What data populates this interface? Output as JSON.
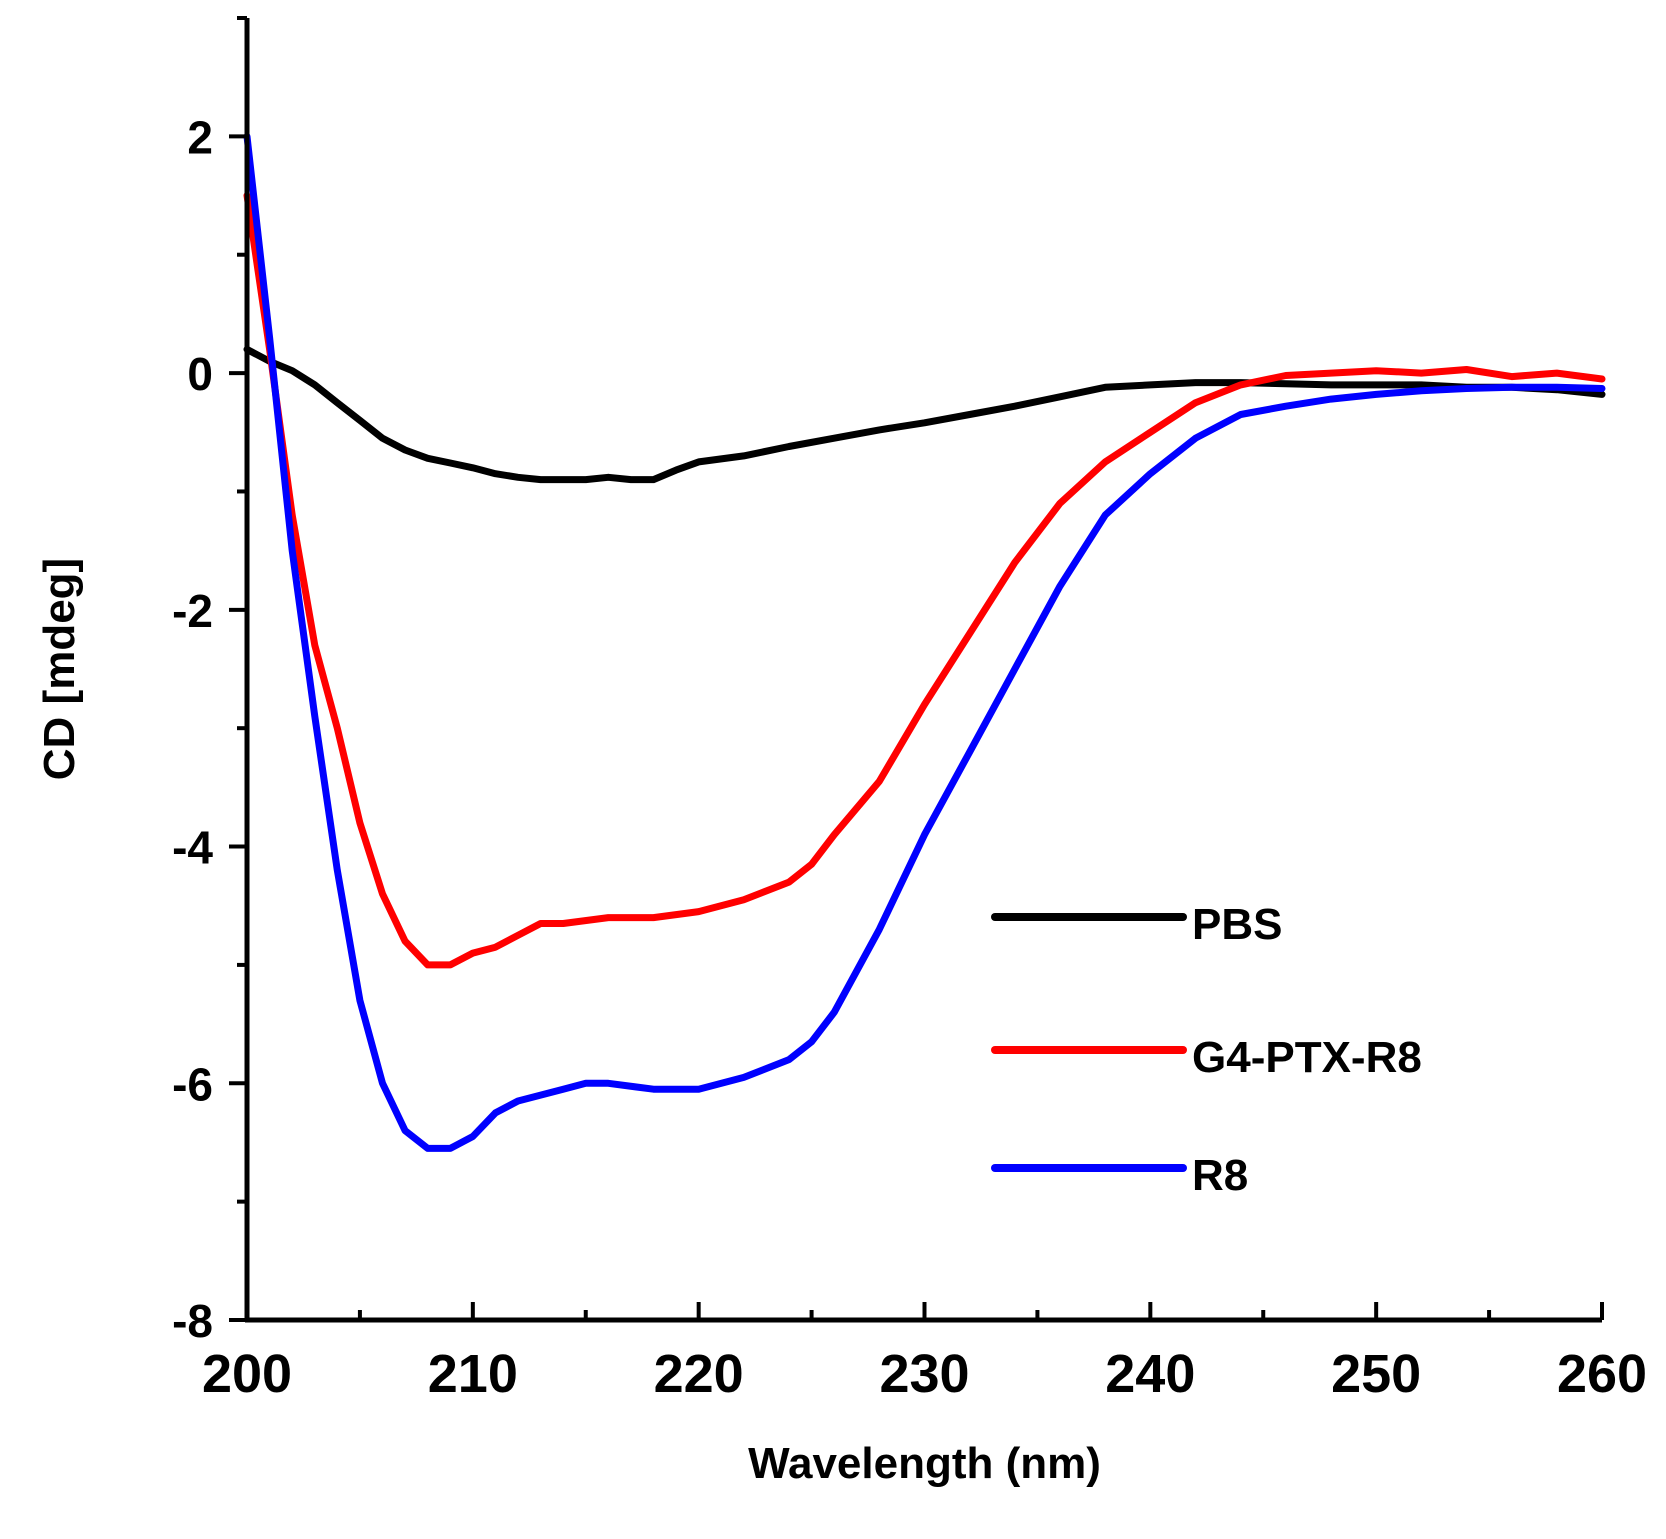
{
  "chart_data": {
    "type": "line",
    "title": "",
    "xlabel": "Wavelength (nm)",
    "ylabel": "CD [mdeg]",
    "xlim": [
      200,
      260
    ],
    "ylim": [
      -8,
      3
    ],
    "xticks": [
      200,
      210,
      220,
      230,
      240,
      250,
      260
    ],
    "yticks": [
      -8,
      -6,
      -4,
      -2,
      0,
      2
    ],
    "xtick_labels": [
      "200",
      "210",
      "220",
      "230",
      "240",
      "250",
      "260"
    ],
    "ytick_labels": [
      "-8",
      "-6",
      "-4",
      "-2",
      "0",
      "2"
    ],
    "grid": false,
    "legend_position": "lower-right",
    "series": [
      {
        "name": "PBS",
        "color": "#000000",
        "x": [
          200,
          201,
          202,
          203,
          204,
          205,
          206,
          207,
          208,
          209,
          210,
          211,
          212,
          213,
          214,
          215,
          216,
          217,
          218,
          219,
          220,
          222,
          224,
          226,
          228,
          230,
          232,
          234,
          236,
          238,
          240,
          242,
          244,
          246,
          248,
          250,
          252,
          254,
          256,
          258,
          260
        ],
        "y": [
          0.2,
          0.1,
          0.02,
          -0.1,
          -0.25,
          -0.4,
          -0.55,
          -0.65,
          -0.72,
          -0.76,
          -0.8,
          -0.85,
          -0.88,
          -0.9,
          -0.9,
          -0.9,
          -0.88,
          -0.9,
          -0.9,
          -0.82,
          -0.75,
          -0.7,
          -0.62,
          -0.55,
          -0.48,
          -0.42,
          -0.35,
          -0.28,
          -0.2,
          -0.12,
          -0.1,
          -0.08,
          -0.08,
          -0.09,
          -0.1,
          -0.1,
          -0.1,
          -0.12,
          -0.12,
          -0.14,
          -0.18
        ]
      },
      {
        "name": "G4-PTX-R8",
        "color": "#ff0000",
        "x": [
          200,
          201,
          202,
          203,
          204,
          205,
          206,
          207,
          208,
          209,
          210,
          211,
          212,
          213,
          214,
          216,
          218,
          220,
          222,
          224,
          225,
          226,
          228,
          230,
          232,
          234,
          236,
          238,
          240,
          242,
          244,
          246,
          248,
          250,
          252,
          254,
          256,
          258,
          260
        ],
        "y": [
          1.5,
          0.2,
          -1.2,
          -2.3,
          -3.0,
          -3.8,
          -4.4,
          -4.8,
          -5.0,
          -5.0,
          -4.9,
          -4.85,
          -4.75,
          -4.65,
          -4.65,
          -4.6,
          -4.6,
          -4.55,
          -4.45,
          -4.3,
          -4.15,
          -3.9,
          -3.45,
          -2.8,
          -2.2,
          -1.6,
          -1.1,
          -0.75,
          -0.5,
          -0.25,
          -0.1,
          -0.02,
          0.0,
          0.02,
          0.0,
          0.03,
          -0.03,
          0.0,
          -0.05
        ]
      },
      {
        "name": "R8",
        "color": "#0000ff",
        "x": [
          200,
          201,
          202,
          203,
          204,
          205,
          206,
          207,
          208,
          209,
          210,
          211,
          212,
          213,
          214,
          215,
          216,
          218,
          220,
          222,
          224,
          225,
          226,
          228,
          230,
          232,
          234,
          236,
          238,
          240,
          242,
          244,
          246,
          248,
          250,
          252,
          254,
          256,
          258,
          260
        ],
        "y": [
          2.0,
          0.3,
          -1.5,
          -2.9,
          -4.2,
          -5.3,
          -6.0,
          -6.4,
          -6.55,
          -6.55,
          -6.45,
          -6.25,
          -6.15,
          -6.1,
          -6.05,
          -6.0,
          -6.0,
          -6.05,
          -6.05,
          -5.95,
          -5.8,
          -5.65,
          -5.4,
          -4.7,
          -3.9,
          -3.2,
          -2.5,
          -1.8,
          -1.2,
          -0.85,
          -0.55,
          -0.35,
          -0.28,
          -0.22,
          -0.18,
          -0.15,
          -0.13,
          -0.12,
          -0.12,
          -0.13
        ]
      }
    ]
  }
}
